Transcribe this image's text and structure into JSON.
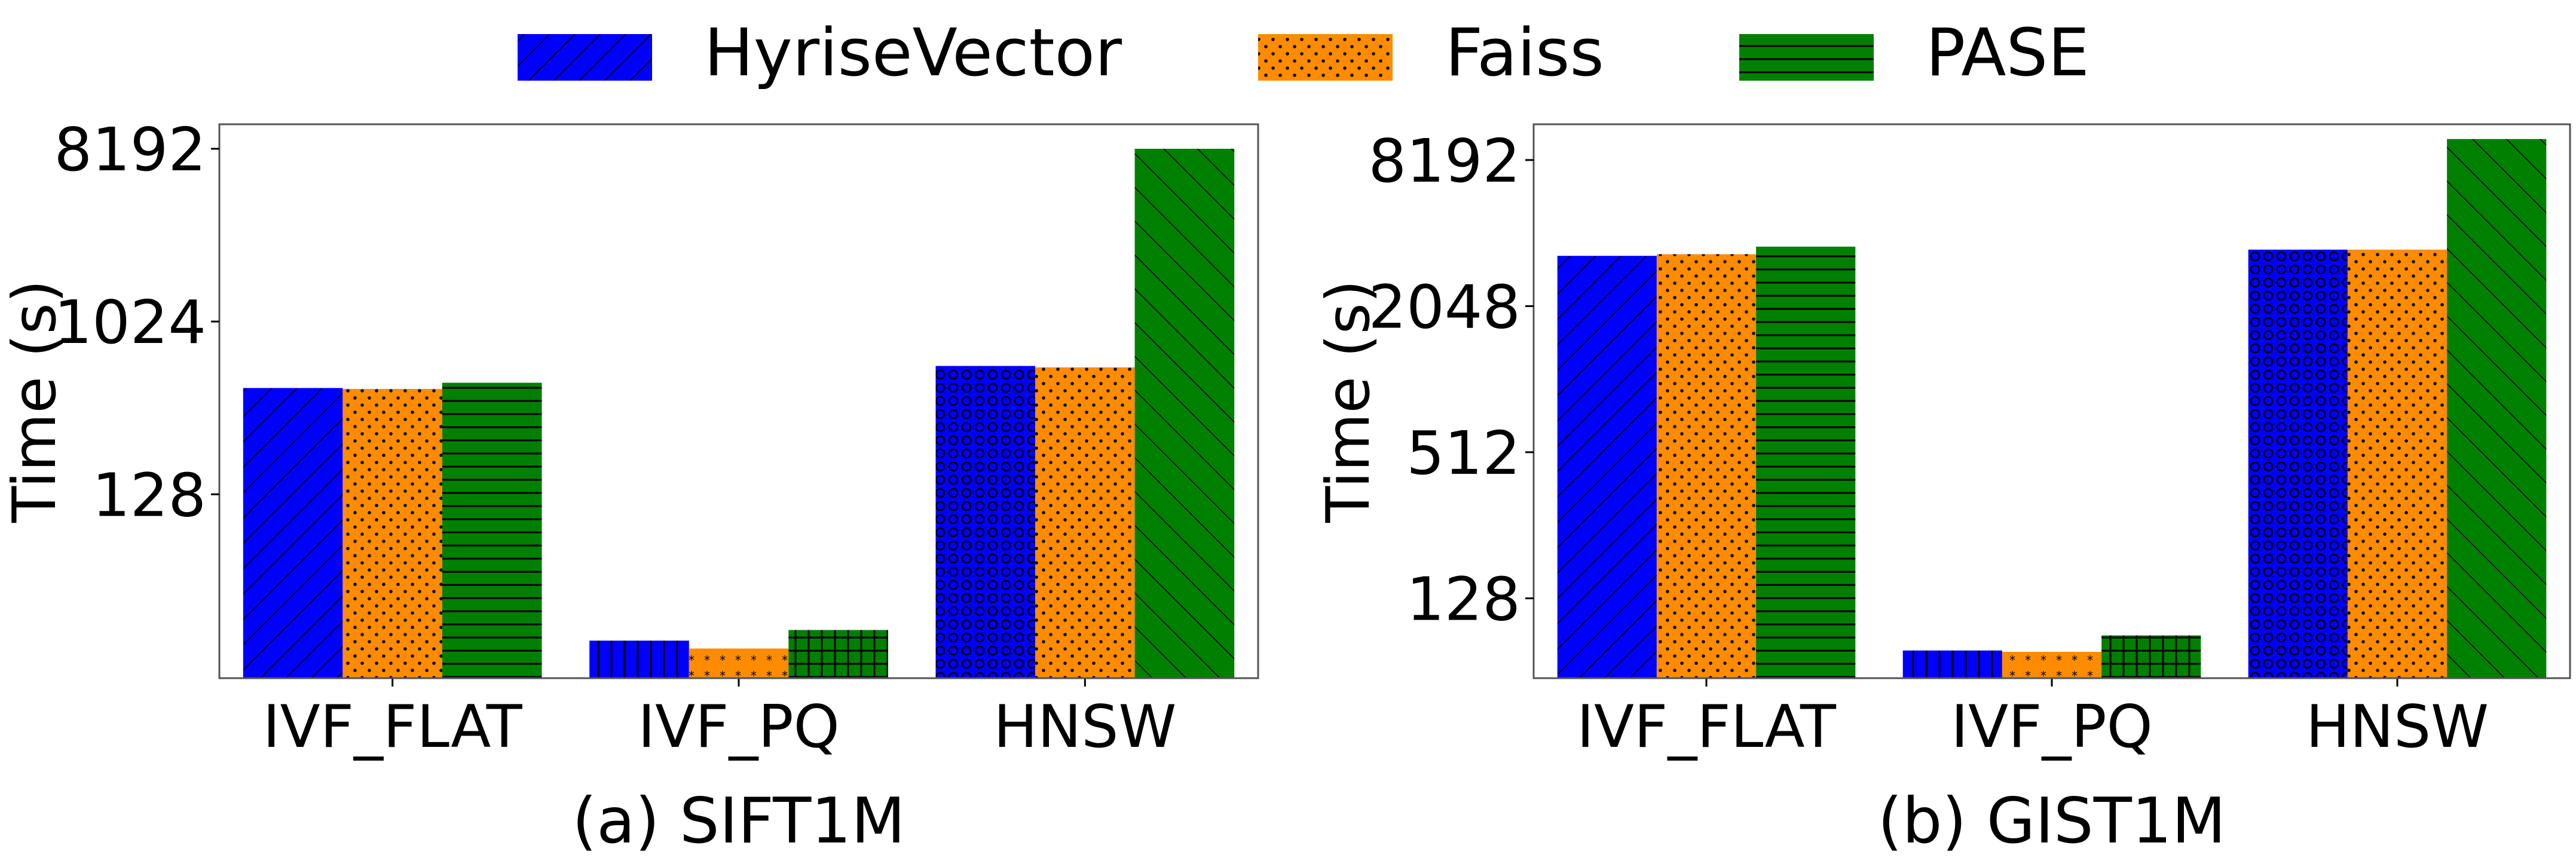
{
  "legend": [
    {
      "name": "HyriseVector",
      "color": "#0000ff",
      "pattern": "diagonal-forward"
    },
    {
      "name": "Faiss",
      "color": "#ff8c00",
      "pattern": "dots"
    },
    {
      "name": "PASE",
      "color": "#008000",
      "pattern": "horizontal-lines"
    }
  ],
  "chart_data": [
    {
      "type": "bar",
      "scale": "log2",
      "caption": "(a) SIFT1M",
      "xlabel": "",
      "ylabel": "Time (s)",
      "categories": [
        "IVF_FLAT",
        "IVF_PQ",
        "HNSW"
      ],
      "yticks": [
        128,
        1024,
        8192
      ],
      "ylim": [
        14,
        11000
      ],
      "grid": false,
      "legend_position": "top-center",
      "series": [
        {
          "name": "HyriseVector",
          "values": [
            460,
            22,
            600
          ]
        },
        {
          "name": "Faiss",
          "values": [
            455,
            20,
            590
          ]
        },
        {
          "name": "PASE",
          "values": [
            490,
            25,
            8192
          ]
        }
      ]
    },
    {
      "type": "bar",
      "scale": "log2",
      "caption": "(b) GIST1M",
      "xlabel": "",
      "ylabel": "Time (s)",
      "categories": [
        "IVF_FLAT",
        "IVF_PQ",
        "HNSW"
      ],
      "yticks": [
        128,
        512,
        2048,
        8192
      ],
      "ylim": [
        60,
        11500
      ],
      "grid": false,
      "legend_position": "top-center",
      "series": [
        {
          "name": "HyriseVector",
          "values": [
            3300,
            78,
            3500
          ]
        },
        {
          "name": "Faiss",
          "values": [
            3350,
            77,
            3500
          ]
        },
        {
          "name": "PASE",
          "values": [
            3600,
            90,
            10000
          ]
        }
      ]
    }
  ]
}
